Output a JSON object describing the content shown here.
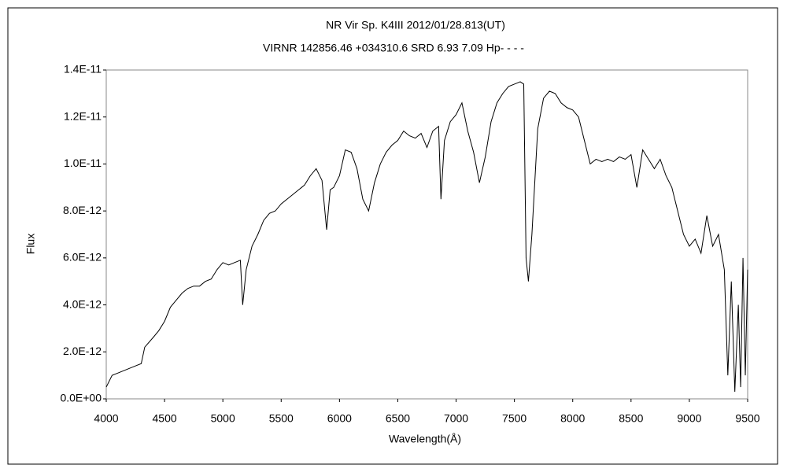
{
  "chart_data": {
    "type": "line",
    "title": "NR Vir    Sp. K4III    2012/01/28.813(UT)",
    "subtitle": "VIRNR 142856.46 +034310.6 SRD 6.93 7.09 Hp- - - -",
    "x_label": "Wavelength(Å)",
    "y_label": "Flux",
    "color": "#000000",
    "xlim": [
      4000,
      9500
    ],
    "xticks": [
      4000,
      4500,
      5000,
      5500,
      6000,
      6500,
      7000,
      7500,
      8000,
      8500,
      9000,
      9500
    ],
    "ylim": [
      0,
      1.4e-11
    ],
    "yticks": [
      {
        "value": 0,
        "label": "0.0E+00"
      },
      {
        "value": 2e-12,
        "label": "2.0E-12"
      },
      {
        "value": 4e-12,
        "label": "4.0E-12"
      },
      {
        "value": 6e-12,
        "label": "6.0E-12"
      },
      {
        "value": 8e-12,
        "label": "8.0E-12"
      },
      {
        "value": 1e-11,
        "label": "1.0E-11"
      },
      {
        "value": 1.2e-11,
        "label": "1.2E-11"
      },
      {
        "value": 1.4e-11,
        "label": "1.4E-11"
      }
    ],
    "x": [
      4000,
      4050,
      4100,
      4150,
      4200,
      4250,
      4300,
      4330,
      4400,
      4450,
      4500,
      4550,
      4600,
      4650,
      4700,
      4750,
      4800,
      4850,
      4900,
      4950,
      5000,
      5050,
      5100,
      5150,
      5170,
      5200,
      5250,
      5300,
      5350,
      5400,
      5450,
      5500,
      5550,
      5600,
      5650,
      5700,
      5750,
      5800,
      5850,
      5890,
      5920,
      5950,
      6000,
      6050,
      6100,
      6150,
      6200,
      6250,
      6300,
      6350,
      6400,
      6450,
      6500,
      6550,
      6600,
      6650,
      6700,
      6750,
      6800,
      6850,
      6870,
      6900,
      6950,
      7000,
      7050,
      7100,
      7150,
      7200,
      7250,
      7300,
      7350,
      7400,
      7450,
      7500,
      7550,
      7580,
      7600,
      7620,
      7650,
      7700,
      7750,
      7800,
      7850,
      7900,
      7950,
      8000,
      8050,
      8100,
      8150,
      8200,
      8250,
      8300,
      8350,
      8400,
      8450,
      8500,
      8550,
      8600,
      8650,
      8700,
      8750,
      8800,
      8850,
      8900,
      8950,
      9000,
      9050,
      9100,
      9150,
      9200,
      9250,
      9300,
      9330,
      9360,
      9390,
      9420,
      9440,
      9460,
      9480,
      9500
    ],
    "values": [
      5e-13,
      1e-12,
      1.1e-12,
      1.2e-12,
      1.3e-12,
      1.4e-12,
      1.5e-12,
      2.2e-12,
      2.6e-12,
      2.9e-12,
      3.3e-12,
      3.9e-12,
      4.2e-12,
      4.5e-12,
      4.7e-12,
      4.8e-12,
      4.8e-12,
      5e-12,
      5.1e-12,
      5.5e-12,
      5.8e-12,
      5.7e-12,
      5.8e-12,
      5.9e-12,
      4e-12,
      5.5e-12,
      6.5e-12,
      7e-12,
      7.6e-12,
      7.9e-12,
      8e-12,
      8.3e-12,
      8.5e-12,
      8.7e-12,
      8.9e-12,
      9.1e-12,
      9.5e-12,
      9.8e-12,
      9.3e-12,
      7.2e-12,
      8.9e-12,
      9e-12,
      9.5e-12,
      1.06e-11,
      1.05e-11,
      9.8e-12,
      8.5e-12,
      8e-12,
      9.2e-12,
      1e-11,
      1.05e-11,
      1.08e-11,
      1.1e-11,
      1.14e-11,
      1.12e-11,
      1.11e-11,
      1.13e-11,
      1.07e-11,
      1.14e-11,
      1.16e-11,
      8.5e-12,
      1.1e-11,
      1.18e-11,
      1.21e-11,
      1.26e-11,
      1.14e-11,
      1.05e-11,
      9.2e-12,
      1.03e-11,
      1.18e-11,
      1.26e-11,
      1.3e-11,
      1.33e-11,
      1.34e-11,
      1.35e-11,
      1.34e-11,
      6e-12,
      5e-12,
      7e-12,
      1.15e-11,
      1.28e-11,
      1.31e-11,
      1.3e-11,
      1.26e-11,
      1.24e-11,
      1.23e-11,
      1.2e-11,
      1.1e-11,
      1e-11,
      1.02e-11,
      1.01e-11,
      1.02e-11,
      1.01e-11,
      1.03e-11,
      1.02e-11,
      1.04e-11,
      9e-12,
      1.06e-11,
      1.02e-11,
      9.8e-12,
      1.02e-11,
      9.5e-12,
      9e-12,
      8e-12,
      7e-12,
      6.5e-12,
      6.8e-12,
      6.2e-12,
      7.8e-12,
      6.5e-12,
      7e-12,
      5.5e-12,
      1e-12,
      5e-12,
      3e-13,
      4e-12,
      5e-13,
      6e-12,
      1e-12,
      5.5e-12
    ]
  }
}
